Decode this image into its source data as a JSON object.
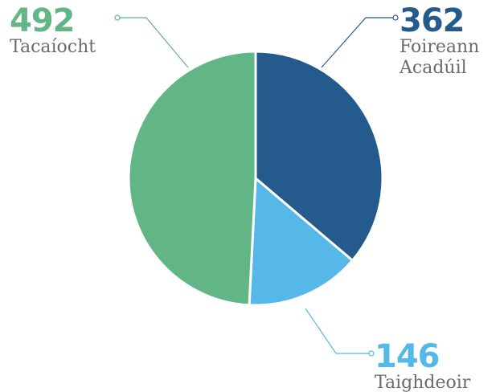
{
  "chart_data": {
    "type": "pie",
    "categories": [
      "Foireann Acadúil",
      "Taighdeoir",
      "Tacaíocht"
    ],
    "values": [
      362,
      146,
      492
    ],
    "colors": [
      "#255b8c",
      "#55b8e8",
      "#62b584"
    ],
    "start_angle": 0,
    "direction": "clockwise"
  }
}
